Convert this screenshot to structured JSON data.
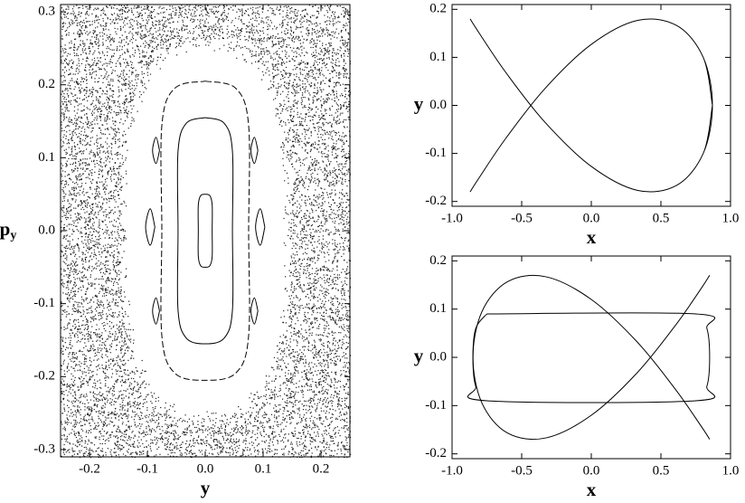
{
  "chart_data": [
    {
      "type": "line",
      "xlabel": "y",
      "ylabel": "p",
      "ylabel_subscript": "y",
      "xlim": [
        -0.25,
        0.25
      ],
      "ylim": [
        -0.31,
        0.31
      ],
      "xticks": [
        -0.2,
        -0.1,
        {
          "value": 0,
          "label": "0.0"
        },
        0.1,
        0.2
      ],
      "yticks": [
        0.3,
        0.2,
        0.1,
        {
          "value": 0,
          "label": "0.0"
        },
        -0.1,
        -0.2,
        -0.3
      ],
      "series": [
        {
          "color": "#000000",
          "dash": true,
          "x": [
            0,
            0.053,
            0.075,
            0.075,
            0.075,
            0.053,
            0,
            -0.053,
            -0.075,
            -0.075,
            -0.075,
            -0.053,
            0
          ],
          "values": [
            0.205,
            0.195,
            0.144,
            0,
            -0.144,
            -0.195,
            -0.205,
            -0.195,
            -0.144,
            0,
            0.144,
            0.195,
            0.205
          ]
        },
        {
          "color": "#000000",
          "x": [
            0,
            0.033,
            0.047,
            0.047,
            0.047,
            0.033,
            0,
            -0.033,
            -0.047,
            -0.047,
            -0.047,
            -0.033,
            0
          ],
          "values": [
            0.155,
            0.147,
            0.109,
            0,
            -0.109,
            -0.147,
            -0.155,
            -0.147,
            -0.109,
            0,
            0.109,
            0.147,
            0.155
          ]
        },
        {
          "color": "#000000",
          "x": [
            0,
            0.008,
            0.012,
            0.012,
            0.012,
            0.008,
            0,
            -0.008,
            -0.012,
            -0.012,
            -0.012,
            -0.008,
            0
          ],
          "values": [
            0.05,
            0.048,
            0.035,
            0,
            -0.035,
            -0.048,
            -0.05,
            -0.048,
            -0.035,
            0,
            0.035,
            0.048,
            0.05
          ]
        },
        {
          "color": "#000000",
          "x": [
            0.103,
            0.095,
            0.087,
            0.095,
            0.103
          ],
          "values": [
            0.005,
            0.03,
            0.005,
            -0.02,
            0.005
          ]
        },
        {
          "color": "#000000",
          "x": [
            -0.087,
            -0.095,
            -0.103,
            -0.095,
            -0.087
          ],
          "values": [
            0.005,
            0.03,
            0.005,
            -0.02,
            0.005
          ]
        },
        {
          "color": "#000000",
          "x": [
            0.091,
            0.085,
            0.079,
            0.085,
            0.091
          ],
          "values": [
            0.11,
            0.128,
            0.11,
            0.092,
            0.11
          ]
        },
        {
          "color": "#000000",
          "x": [
            -0.079,
            -0.085,
            -0.091,
            -0.085,
            -0.079
          ],
          "values": [
            0.11,
            0.128,
            0.11,
            0.092,
            0.11
          ]
        },
        {
          "color": "#000000",
          "x": [
            0.091,
            0.085,
            0.079,
            0.085,
            0.091
          ],
          "values": [
            -0.11,
            -0.092,
            -0.11,
            -0.128,
            -0.11
          ]
        },
        {
          "color": "#000000",
          "x": [
            -0.079,
            -0.085,
            -0.091,
            -0.085,
            -0.079
          ],
          "values": [
            -0.11,
            -0.092,
            -0.11,
            -0.128,
            -0.11
          ]
        }
      ]
    },
    {
      "type": "line",
      "xlabel": "x",
      "ylabel": "y",
      "xlim": [
        -1.0,
        1.0
      ],
      "ylim": [
        -0.21,
        0.21
      ],
      "xticks": [
        {
          "value": -1,
          "label": "-1.0"
        },
        -0.5,
        {
          "value": 0,
          "label": "0.0"
        },
        0.5,
        {
          "value": 1,
          "label": "1.0"
        }
      ],
      "yticks": [
        0.2,
        0.1,
        {
          "value": 0,
          "label": "0.0"
        },
        -0.1,
        -0.2
      ],
      "series": [
        {
          "color": "#000000",
          "x": [
            0.87,
            0.804,
            0.615,
            0.333,
            0,
            -0.333,
            -0.615,
            -0.804,
            -0.87,
            -0.804,
            -0.615,
            -0.333,
            0,
            0.333,
            0.615,
            0.804,
            0.87,
            0.804,
            0.615,
            0.333,
            0,
            -0.333,
            -0.615,
            -0.804,
            -0.87,
            -0.804,
            -0.615,
            -0.333,
            0,
            0.333,
            0.615,
            0.804,
            0.87
          ],
          "values": [
            0,
            0.1,
            0.166,
            0.177,
            0.127,
            0.035,
            -0.069,
            -0.15,
            -0.18,
            -0.15,
            -0.069,
            0.035,
            0.127,
            0.177,
            0.166,
            0.1,
            0,
            -0.1,
            -0.166,
            -0.177,
            -0.127,
            -0.035,
            0.069,
            0.15,
            0.18,
            0.15,
            0.069,
            -0.035,
            -0.127,
            -0.177,
            -0.166,
            -0.1,
            0
          ]
        }
      ]
    },
    {
      "type": "line",
      "xlabel": "x",
      "ylabel": "y",
      "xlim": [
        -1.0,
        1.0
      ],
      "ylim": [
        -0.21,
        0.21
      ],
      "xticks": [
        {
          "value": -1,
          "label": "-1.0"
        },
        -0.5,
        {
          "value": 0,
          "label": "0.0"
        },
        0.5,
        {
          "value": 1,
          "label": "1.0"
        }
      ],
      "yticks": [
        0.2,
        0.1,
        {
          "value": 0,
          "label": "0.0"
        },
        -0.1,
        -0.2
      ],
      "series": [
        {
          "color": "#000000",
          "x": [
            0.85,
            0.785,
            0.601,
            0.326,
            0,
            -0.326,
            -0.601,
            -0.785,
            -0.85,
            -0.785,
            -0.601,
            -0.326,
            0,
            0.326,
            0.601,
            0.785,
            0.85,
            0.785,
            0.601,
            0.326,
            0,
            -0.326,
            -0.601,
            -0.785,
            -0.85,
            -0.785,
            -0.601,
            -0.326,
            0,
            0.326,
            0.601,
            0.785,
            0.85
          ],
          "values": [
            0.17,
            0.141,
            0.065,
            -0.033,
            -0.12,
            -0.167,
            -0.157,
            -0.095,
            0,
            0.095,
            0.157,
            0.167,
            0.12,
            0.033,
            -0.065,
            -0.141,
            -0.17,
            -0.141,
            -0.065,
            0.033,
            0.12,
            0.167,
            0.157,
            0.095,
            0,
            -0.095,
            -0.157,
            -0.167,
            -0.12,
            -0.033,
            0.065,
            0.141,
            0.17
          ]
        },
        {
          "color": "#000000",
          "x": [
            -0.75,
            0.75,
            0.83,
            0.85,
            0.83,
            0.75,
            -0.75,
            -0.83,
            -0.85,
            -0.83,
            -0.75
          ],
          "values": [
            0.09,
            0.09,
            0.06,
            0,
            -0.06,
            -0.09,
            -0.09,
            -0.06,
            0,
            0.06,
            0.09
          ]
        }
      ]
    }
  ]
}
